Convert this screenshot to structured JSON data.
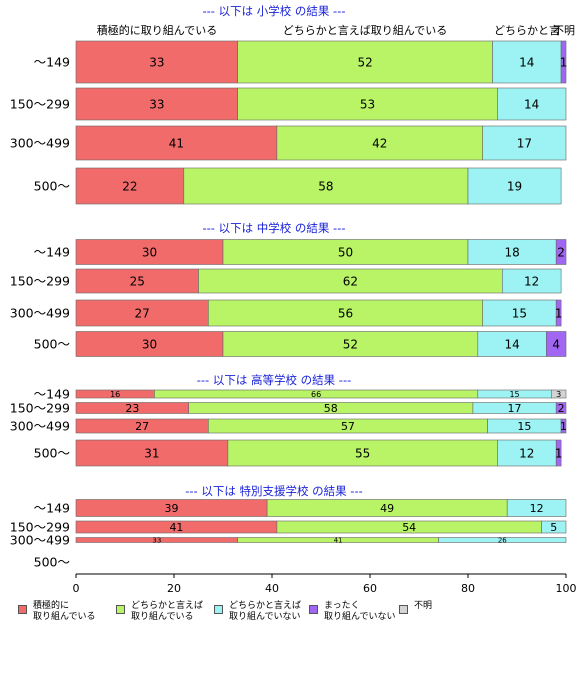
{
  "chart_data": {
    "type": "bar",
    "orientation": "horizontal",
    "stacked": true,
    "xlim": [
      0,
      100
    ],
    "x_ticks": [
      "0",
      "20",
      "40",
      "60",
      "80",
      "100"
    ],
    "column_labels": [
      "積極的に取り組んでいる",
      "どちらかと言えば取り組んでいる",
      "どちらかと言"
    ],
    "legend": {
      "placement": "bottom",
      "items": [
        {
          "label": "積極的に\n取り組んでいる",
          "color": "#f26b6b"
        },
        {
          "label": "どちらかと言えば\n取り組んでいる",
          "color": "#b8f466"
        },
        {
          "label": "どちらかと言えば\n取り組んでいない",
          "color": "#9df3f3"
        },
        {
          "label": "まったく\n取り組んでいない",
          "color": "#a267f2"
        },
        {
          "label": "不明",
          "color": "#d4d4d4"
        }
      ]
    },
    "series_colors": [
      "#f26b6b",
      "#b8f466",
      "#9df3f3",
      "#a267f2",
      "#d4d4d4"
    ],
    "groups": [
      {
        "title": "--- 以下は 小学校 の結果 ---",
        "categories": [
          "〜149",
          "150〜299",
          "300〜499",
          "500〜"
        ],
        "series": [
          {
            "values": [
              33,
              33,
              41,
              22
            ]
          },
          {
            "values": [
              52,
              53,
              42,
              58
            ]
          },
          {
            "values": [
              14,
              14,
              17,
              19
            ]
          },
          {
            "values": [
              1,
              0,
              0,
              0
            ]
          },
          {
            "values": [
              0,
              0,
              0,
              0
            ]
          }
        ],
        "value_labels": [
          [
            "33",
            "52",
            "14",
            "1",
            ""
          ],
          [
            "33",
            "53",
            "14",
            "",
            ""
          ],
          [
            "41",
            "42",
            "17",
            "",
            ""
          ],
          [
            "22",
            "58",
            "19",
            "",
            ""
          ]
        ],
        "extra_label": "不明"
      },
      {
        "title": "--- 以下は 中学校 の結果 ---",
        "categories": [
          "〜149",
          "150〜299",
          "300〜499",
          "500〜"
        ],
        "series": [
          {
            "values": [
              30,
              25,
              27,
              30
            ]
          },
          {
            "values": [
              50,
              62,
              56,
              52
            ]
          },
          {
            "values": [
              18,
              12,
              15,
              14
            ]
          },
          {
            "values": [
              2,
              0,
              1,
              4
            ]
          },
          {
            "values": [
              0,
              0,
              0,
              0
            ]
          }
        ],
        "value_labels": [
          [
            "30",
            "50",
            "18",
            "2",
            ""
          ],
          [
            "25",
            "62",
            "12",
            "",
            ""
          ],
          [
            "27",
            "56",
            "15",
            "1",
            ""
          ],
          [
            "30",
            "52",
            "14",
            "4",
            ""
          ]
        ]
      },
      {
        "title": "--- 以下は 高等学校 の結果 ---",
        "categories": [
          "〜149",
          "150〜299",
          "300〜499",
          "500〜"
        ],
        "series": [
          {
            "values": [
              16,
              23,
              27,
              31
            ]
          },
          {
            "values": [
              66,
              58,
              57,
              55
            ]
          },
          {
            "values": [
              15,
              17,
              15,
              12
            ]
          },
          {
            "values": [
              0,
              2,
              1,
              1
            ]
          },
          {
            "values": [
              3,
              0,
              0,
              0
            ]
          }
        ],
        "value_labels": [
          [
            "16",
            "66",
            "15",
            "",
            "3"
          ],
          [
            "23",
            "58",
            "17",
            "2",
            ""
          ],
          [
            "27",
            "57",
            "15",
            "1",
            ""
          ],
          [
            "31",
            "55",
            "12",
            "1",
            ""
          ]
        ]
      },
      {
        "title": "--- 以下は 特別支援学校 の結果 ---",
        "categories": [
          "〜149",
          "150〜299",
          "300〜499",
          "500〜"
        ],
        "series": [
          {
            "values": [
              39,
              41,
              33,
              null
            ]
          },
          {
            "values": [
              49,
              54,
              41,
              null
            ]
          },
          {
            "values": [
              12,
              5,
              26,
              null
            ]
          },
          {
            "values": [
              0,
              0,
              0,
              null
            ]
          },
          {
            "values": [
              0,
              0,
              0,
              null
            ]
          }
        ],
        "value_labels": [
          [
            "39",
            "49",
            "12",
            "",
            ""
          ],
          [
            "41",
            "54",
            "5",
            "",
            ""
          ],
          [
            "33",
            "41",
            "26",
            "",
            ""
          ],
          [
            "",
            "",
            "",
            "",
            ""
          ]
        ]
      }
    ]
  }
}
